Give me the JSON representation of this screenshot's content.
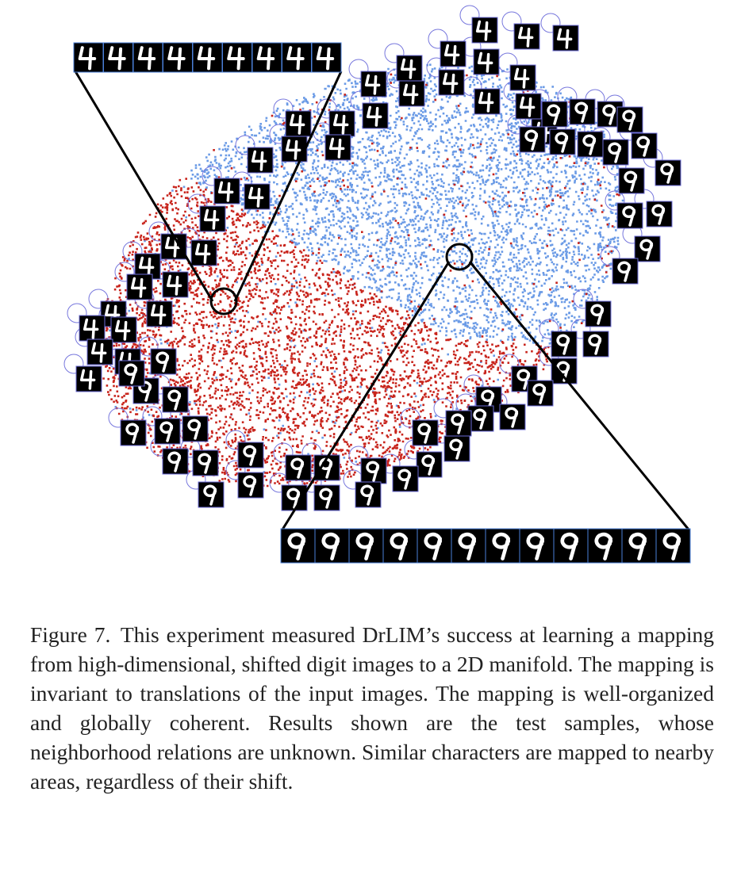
{
  "figure": {
    "label": "Figure 7.",
    "caption": "This experiment measured DrLIM’s success at learning a mapping from high-dimensional, shifted digit images to a 2D manifold.  The mapping is invariant to translations of the input images.  The mapping is well-organized and globally coherent. Results shown are the test samples, whose neighborhood relations are unknown.  Similar characters are mapped to nearby areas, regardless of their shift."
  },
  "digits": {
    "class_a": "4",
    "class_b": "9"
  },
  "colors": {
    "class_a_points": "#6b9be6",
    "class_b_points": "#c8241c",
    "tile_background": "#000000",
    "tile_border": "#6c6cd8",
    "marker_circle": "#7777dd",
    "digit_stroke": "#ffffff",
    "callout_line": "#000000"
  }
}
